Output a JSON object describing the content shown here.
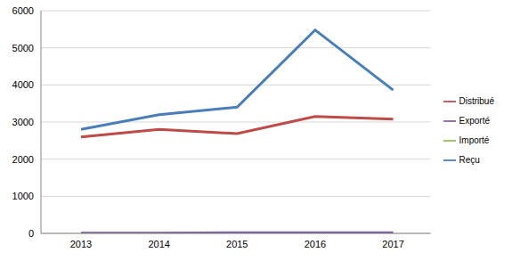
{
  "chart_data": {
    "type": "line",
    "categories": [
      "2013",
      "2014",
      "2015",
      "2016",
      "2017"
    ],
    "series": [
      {
        "name": "Reçu",
        "color": "#4a7ebb",
        "values": [
          2800,
          3200,
          3400,
          5480,
          3860
        ]
      },
      {
        "name": "Distribué",
        "color": "#be4b48",
        "values": [
          2600,
          2800,
          2690,
          3150,
          3080
        ]
      },
      {
        "name": "Importé",
        "color": "#98b954",
        "values": [
          0,
          0,
          0,
          0,
          0
        ]
      },
      {
        "name": "Exporté",
        "color": "#7d60a0",
        "values": [
          5,
          5,
          20,
          20,
          20
        ]
      }
    ],
    "ylim": [
      0,
      6000
    ],
    "yticks": [
      0,
      1000,
      2000,
      3000,
      4000,
      5000,
      6000
    ],
    "grid": true,
    "legend": "right"
  }
}
